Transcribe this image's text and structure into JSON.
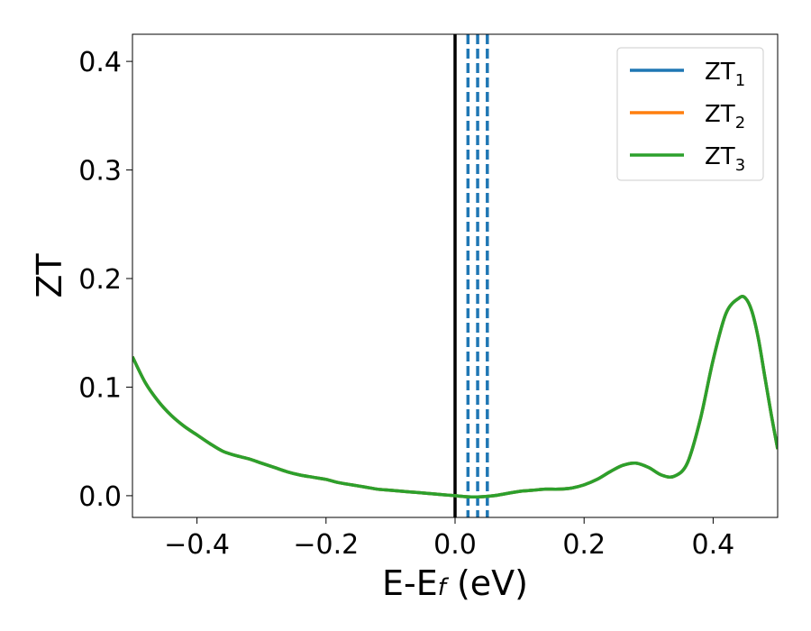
{
  "chart_data": {
    "type": "line",
    "title": "",
    "xlabel": "E-E_f (eV)",
    "xlabel_parts": {
      "main": "E-E",
      "sub": "f",
      "rest": " (eV)"
    },
    "ylabel": "ZT",
    "xlim": [
      -0.5,
      0.5
    ],
    "ylim": [
      -0.02,
      0.425
    ],
    "xticks": [
      -0.4,
      -0.2,
      0.0,
      0.2,
      0.4
    ],
    "xtick_labels": [
      "−0.4",
      "−0.2",
      "0.0",
      "0.2",
      "0.4"
    ],
    "yticks": [
      0.0,
      0.1,
      0.2,
      0.3,
      0.4
    ],
    "ytick_labels": [
      "0.0",
      "0.1",
      "0.2",
      "0.3",
      "0.4"
    ],
    "grid": false,
    "legend_position": "top-right",
    "x": [
      -0.5,
      -0.48,
      -0.46,
      -0.44,
      -0.42,
      -0.4,
      -0.38,
      -0.36,
      -0.34,
      -0.32,
      -0.3,
      -0.28,
      -0.26,
      -0.24,
      -0.22,
      -0.2,
      -0.18,
      -0.16,
      -0.14,
      -0.12,
      -0.1,
      -0.08,
      -0.06,
      -0.04,
      -0.02,
      0.0,
      0.02,
      0.04,
      0.06,
      0.08,
      0.1,
      0.12,
      0.14,
      0.16,
      0.18,
      0.2,
      0.22,
      0.24,
      0.26,
      0.28,
      0.3,
      0.32,
      0.34,
      0.36,
      0.38,
      0.4,
      0.42,
      0.44,
      0.45,
      0.46,
      0.47,
      0.48,
      0.49,
      0.5
    ],
    "series": [
      {
        "name": "ZT",
        "sub": "1",
        "color": "#1f77b4",
        "values": [
          0.128,
          0.104,
          0.087,
          0.074,
          0.064,
          0.056,
          0.048,
          0.041,
          0.037,
          0.034,
          0.03,
          0.026,
          0.022,
          0.019,
          0.017,
          0.015,
          0.012,
          0.01,
          0.008,
          0.006,
          0.005,
          0.004,
          0.003,
          0.002,
          0.001,
          0.0,
          -0.001,
          -0.001,
          0.0,
          0.002,
          0.004,
          0.005,
          0.006,
          0.006,
          0.007,
          0.01,
          0.015,
          0.022,
          0.028,
          0.03,
          0.026,
          0.019,
          0.018,
          0.03,
          0.07,
          0.125,
          0.168,
          0.182,
          0.182,
          0.17,
          0.145,
          0.11,
          0.075,
          0.043
        ]
      },
      {
        "name": "ZT",
        "sub": "2",
        "color": "#ff7f0e",
        "values": [
          0.128,
          0.104,
          0.087,
          0.074,
          0.064,
          0.056,
          0.048,
          0.041,
          0.037,
          0.034,
          0.03,
          0.026,
          0.022,
          0.019,
          0.017,
          0.015,
          0.012,
          0.01,
          0.008,
          0.006,
          0.005,
          0.004,
          0.003,
          0.002,
          0.001,
          0.0,
          -0.001,
          -0.001,
          0.0,
          0.002,
          0.004,
          0.005,
          0.006,
          0.006,
          0.007,
          0.01,
          0.015,
          0.022,
          0.028,
          0.03,
          0.026,
          0.019,
          0.018,
          0.03,
          0.07,
          0.125,
          0.168,
          0.182,
          0.182,
          0.17,
          0.145,
          0.11,
          0.075,
          0.043
        ]
      },
      {
        "name": "ZT",
        "sub": "3",
        "color": "#2ca02c",
        "values": [
          0.128,
          0.104,
          0.087,
          0.074,
          0.064,
          0.056,
          0.048,
          0.041,
          0.037,
          0.034,
          0.03,
          0.026,
          0.022,
          0.019,
          0.017,
          0.015,
          0.012,
          0.01,
          0.008,
          0.006,
          0.005,
          0.004,
          0.003,
          0.002,
          0.001,
          0.0,
          -0.001,
          -0.001,
          0.0,
          0.002,
          0.004,
          0.005,
          0.006,
          0.006,
          0.007,
          0.01,
          0.015,
          0.022,
          0.028,
          0.03,
          0.026,
          0.019,
          0.018,
          0.03,
          0.07,
          0.125,
          0.168,
          0.182,
          0.182,
          0.17,
          0.145,
          0.11,
          0.075,
          0.043
        ]
      }
    ],
    "vlines": [
      {
        "x": 0.0,
        "style": "solid",
        "color": "#000000"
      },
      {
        "x": 0.02,
        "style": "dashed",
        "color": "#1f77b4"
      },
      {
        "x": 0.035,
        "style": "dashed",
        "color": "#1f77b4"
      },
      {
        "x": 0.05,
        "style": "dashed",
        "color": "#1f77b4"
      }
    ]
  }
}
